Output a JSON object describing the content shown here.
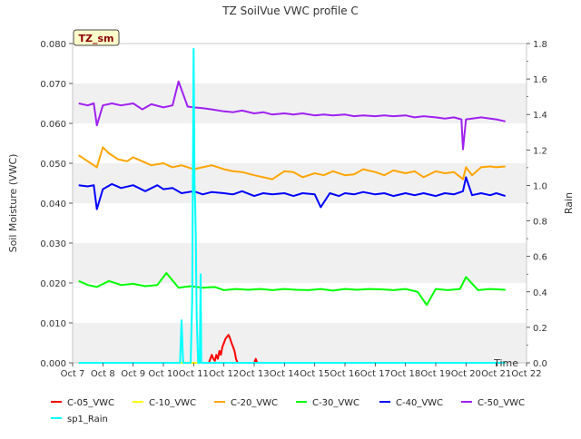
{
  "chart_data": {
    "type": "line",
    "title": "TZ SoilVue VWC profile C",
    "badge": "TZ_sm",
    "xlabel": "Time",
    "ylabel": "Soil Moisture (VWC)",
    "y2label": "Rain",
    "ylim": [
      0,
      0.08
    ],
    "y2lim": [
      0,
      1.8
    ],
    "xlim": [
      7,
      22
    ],
    "x_ticks": [
      7,
      8,
      9,
      10,
      11,
      12,
      13,
      14,
      15,
      16,
      17,
      18,
      19,
      20,
      21,
      22
    ],
    "x_tick_labels": [
      "Oct 7",
      "Oct 8",
      "Oct 9",
      "Oct 10",
      "Oct 11",
      "Oct 12",
      "Oct 13",
      "Oct 14",
      "Oct 15",
      "Oct 16",
      "Oct 17",
      "Oct 18",
      "Oct 19",
      "Oct 20",
      "Oct 21",
      "Oct 22"
    ],
    "y_ticks": [
      0.0,
      0.01,
      0.02,
      0.03,
      0.04,
      0.05,
      0.06,
      0.07,
      0.08
    ],
    "y_tick_labels": [
      "0.000",
      "0.010",
      "0.020",
      "0.030",
      "0.040",
      "0.050",
      "0.060",
      "0.070",
      "0.080"
    ],
    "y2_ticks": [
      0.0,
      0.2,
      0.4,
      0.6,
      0.8,
      1.0,
      1.2,
      1.4,
      1.6,
      1.8
    ],
    "y2_tick_labels": [
      "0.0",
      "0.2",
      "0.4",
      "0.6",
      "0.8",
      "1.0",
      "1.2",
      "1.4",
      "1.6",
      "1.8"
    ],
    "grid": "horizontal bands",
    "legend_placement": "bottom",
    "series": [
      {
        "name": "C-05_VWC",
        "color": "#ff0000",
        "axis": "left",
        "line_width": 2,
        "x": [
          7.2,
          11.5,
          11.55,
          11.6,
          11.65,
          11.7,
          11.75,
          11.8,
          11.85,
          11.9,
          11.95,
          12.0,
          12.05,
          12.1,
          12.15,
          12.2,
          12.25,
          12.3,
          12.35,
          12.4,
          12.45,
          12.5,
          12.55,
          12.6,
          12.65,
          12.7,
          12.75,
          12.8,
          12.85,
          12.9,
          12.95,
          13.0,
          13.05,
          13.1,
          21.3
        ],
        "y": [
          0.0,
          0.0,
          0.001,
          0.002,
          0.001,
          0.0005,
          0.002,
          0.001,
          0.003,
          0.002,
          0.004,
          0.005,
          0.006,
          0.0065,
          0.007,
          0.0062,
          0.005,
          0.004,
          0.003,
          0.001,
          0.0,
          0.0,
          0.0,
          0.0,
          0.0,
          0.0,
          0.0,
          0.0,
          0.0,
          0.0,
          0.0,
          0.0,
          0.001,
          0.0,
          0.0
        ]
      },
      {
        "name": "C-10_VWC",
        "color": "#ffff00",
        "axis": "left",
        "line_width": 2,
        "x": [
          7.2,
          21.3
        ],
        "y": [
          0.0,
          0.0
        ]
      },
      {
        "name": "C-20_VWC",
        "color": "#ffa500",
        "axis": "left",
        "line_width": 2,
        "x": [
          7.2,
          7.5,
          7.8,
          8.0,
          8.2,
          8.5,
          8.8,
          9.0,
          9.3,
          9.6,
          10.0,
          10.3,
          10.6,
          11.0,
          11.3,
          11.6,
          12.0,
          12.3,
          12.6,
          13.0,
          13.3,
          13.6,
          14.0,
          14.3,
          14.6,
          15.0,
          15.3,
          15.6,
          16.0,
          16.3,
          16.6,
          17.0,
          17.3,
          17.6,
          18.0,
          18.3,
          18.6,
          19.0,
          19.3,
          19.6,
          19.9,
          20.0,
          20.2,
          20.5,
          20.8,
          21.0,
          21.3
        ],
        "y": [
          0.052,
          0.0505,
          0.049,
          0.054,
          0.0525,
          0.051,
          0.0505,
          0.0515,
          0.0505,
          0.0495,
          0.05,
          0.049,
          0.0495,
          0.0485,
          0.049,
          0.0495,
          0.0485,
          0.048,
          0.0478,
          0.047,
          0.0465,
          0.046,
          0.048,
          0.0478,
          0.0465,
          0.0475,
          0.047,
          0.048,
          0.047,
          0.0472,
          0.0485,
          0.0478,
          0.047,
          0.0482,
          0.0475,
          0.048,
          0.0465,
          0.048,
          0.0475,
          0.0478,
          0.046,
          0.049,
          0.047,
          0.049,
          0.0492,
          0.049,
          0.0492
        ]
      },
      {
        "name": "C-30_VWC",
        "color": "#00ff00",
        "axis": "left",
        "line_width": 2,
        "x": [
          7.2,
          7.5,
          7.8,
          8.2,
          8.6,
          9.0,
          9.4,
          9.8,
          10.1,
          10.5,
          10.9,
          11.3,
          11.7,
          12.0,
          12.4,
          12.8,
          13.2,
          13.6,
          14.0,
          14.4,
          14.8,
          15.2,
          15.6,
          16.0,
          16.4,
          16.8,
          17.2,
          17.6,
          18.0,
          18.4,
          18.7,
          19.0,
          19.4,
          19.8,
          20.0,
          20.4,
          20.8,
          21.3
        ],
        "y": [
          0.0205,
          0.0195,
          0.019,
          0.0205,
          0.0195,
          0.0198,
          0.0192,
          0.0195,
          0.0225,
          0.0188,
          0.0192,
          0.0188,
          0.019,
          0.0182,
          0.0185,
          0.0183,
          0.0185,
          0.0182,
          0.0185,
          0.0183,
          0.0182,
          0.0185,
          0.0181,
          0.0185,
          0.0183,
          0.0185,
          0.0184,
          0.0182,
          0.0185,
          0.0178,
          0.0145,
          0.0185,
          0.0182,
          0.0185,
          0.0215,
          0.0182,
          0.0185,
          0.0183
        ]
      },
      {
        "name": "C-40_VWC",
        "color": "#0000ff",
        "axis": "left",
        "line_width": 2,
        "x": [
          7.2,
          7.5,
          7.7,
          7.8,
          8.0,
          8.3,
          8.6,
          9.0,
          9.4,
          9.8,
          10.0,
          10.3,
          10.6,
          11.0,
          11.3,
          11.6,
          12.0,
          12.3,
          12.6,
          13.0,
          13.3,
          13.6,
          14.0,
          14.3,
          14.6,
          15.0,
          15.2,
          15.5,
          15.8,
          16.0,
          16.3,
          16.6,
          17.0,
          17.3,
          17.6,
          18.0,
          18.3,
          18.6,
          19.0,
          19.3,
          19.6,
          19.9,
          20.0,
          20.2,
          20.5,
          20.8,
          21.0,
          21.3
        ],
        "y": [
          0.0445,
          0.0442,
          0.0445,
          0.0385,
          0.0435,
          0.0448,
          0.0438,
          0.0445,
          0.043,
          0.0445,
          0.0435,
          0.0438,
          0.0425,
          0.043,
          0.0422,
          0.0428,
          0.0425,
          0.0422,
          0.043,
          0.0418,
          0.0425,
          0.0422,
          0.0425,
          0.0418,
          0.0425,
          0.0422,
          0.039,
          0.0425,
          0.0418,
          0.0425,
          0.0422,
          0.0428,
          0.0422,
          0.0425,
          0.0418,
          0.0425,
          0.042,
          0.0425,
          0.0418,
          0.0425,
          0.0422,
          0.043,
          0.0465,
          0.042,
          0.0425,
          0.042,
          0.0425,
          0.0418
        ]
      },
      {
        "name": "C-50_VWC",
        "color": "#a020f0",
        "axis": "left",
        "line_width": 2,
        "x": [
          7.2,
          7.5,
          7.7,
          7.8,
          8.0,
          8.3,
          8.6,
          9.0,
          9.3,
          9.6,
          10.0,
          10.3,
          10.5,
          10.8,
          11.0,
          11.3,
          11.6,
          12.0,
          12.3,
          12.6,
          13.0,
          13.3,
          13.6,
          14.0,
          14.3,
          14.6,
          15.0,
          15.3,
          15.6,
          16.0,
          16.3,
          16.6,
          17.0,
          17.3,
          17.6,
          18.0,
          18.3,
          18.6,
          19.0,
          19.3,
          19.6,
          19.85,
          19.9,
          20.0,
          20.2,
          20.5,
          20.8,
          21.0,
          21.3
        ],
        "y": [
          0.065,
          0.0645,
          0.065,
          0.0595,
          0.0645,
          0.065,
          0.0645,
          0.065,
          0.0635,
          0.0648,
          0.064,
          0.0645,
          0.0705,
          0.0642,
          0.064,
          0.0638,
          0.0635,
          0.063,
          0.0628,
          0.0632,
          0.0625,
          0.0628,
          0.0622,
          0.0625,
          0.0622,
          0.0625,
          0.062,
          0.0622,
          0.062,
          0.0622,
          0.0618,
          0.062,
          0.0618,
          0.062,
          0.0618,
          0.062,
          0.0615,
          0.0618,
          0.0615,
          0.0612,
          0.0615,
          0.061,
          0.0535,
          0.061,
          0.0612,
          0.0615,
          0.0612,
          0.061,
          0.0605
        ]
      },
      {
        "name": "sp1_Rain",
        "color": "#00ffff",
        "axis": "right",
        "line_width": 2,
        "x": [
          7.2,
          10.55,
          10.6,
          10.65,
          10.7,
          10.9,
          10.95,
          11.0,
          11.03,
          11.05,
          11.07,
          11.1,
          11.15,
          11.2,
          11.23,
          11.25,
          11.3,
          11.35,
          11.4,
          11.45,
          21.3
        ],
        "y": [
          0.0,
          0.0,
          0.24,
          0.0,
          0.0,
          0.0,
          0.35,
          1.77,
          1.0,
          0.9,
          0.7,
          0.25,
          0.0,
          0.0,
          0.5,
          0.0,
          0.0,
          0.0,
          0.0,
          0.0,
          0.0
        ]
      }
    ]
  }
}
